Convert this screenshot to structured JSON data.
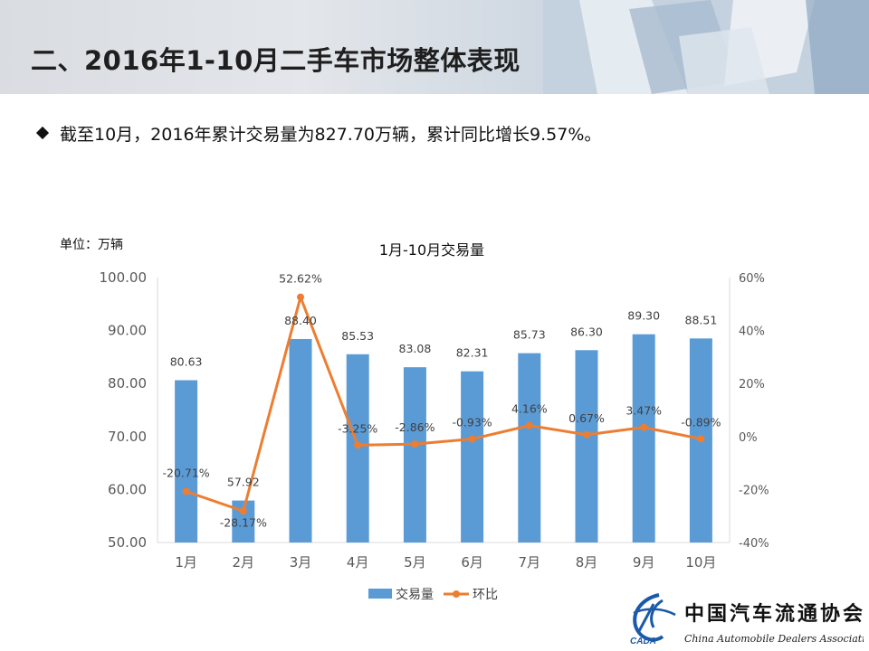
{
  "header": {
    "title": "二、2016年1-10月二手车市场整体表现"
  },
  "bullet": {
    "text": "截至10月，2016年累计交易量为827.70万辆，累计同比增长9.57%。"
  },
  "unit_label": "单位：万辆",
  "logo": {
    "name": "中国汽车流通协会",
    "tagline": "China Automobile Dealers Association",
    "abbr": "CADA"
  },
  "chart_data": {
    "type": "bar+line",
    "title": "1月-10月交易量",
    "categories": [
      "1月",
      "2月",
      "3月",
      "4月",
      "5月",
      "6月",
      "7月",
      "8月",
      "9月",
      "10月"
    ],
    "series": [
      {
        "name": "交易量",
        "type": "bar",
        "axis": "left",
        "color": "#5b9bd5",
        "values": [
          80.63,
          57.92,
          88.4,
          85.53,
          83.08,
          82.31,
          85.73,
          86.3,
          89.3,
          88.51
        ],
        "labels": [
          "80.63",
          "57.92",
          "88.40",
          "85.53",
          "83.08",
          "82.31",
          "85.73",
          "86.30",
          "89.30",
          "88.51"
        ]
      },
      {
        "name": "环比",
        "type": "line",
        "axis": "right",
        "color": "#ed7d31",
        "values": [
          -20.71,
          -28.17,
          52.62,
          -3.25,
          -2.86,
          -0.93,
          4.16,
          0.67,
          3.47,
          -0.89
        ],
        "labels": [
          "-20.71%",
          "-28.17%",
          "52.62%",
          "-3.25%",
          "-2.86%",
          "-0.93%",
          "4.16%",
          "0.67%",
          "3.47%",
          "-0.89%"
        ]
      }
    ],
    "ylim_left": [
      50,
      100
    ],
    "yticks_left": [
      "100.00",
      "90.00",
      "80.00",
      "70.00",
      "60.00",
      "50.00"
    ],
    "ylim_right": [
      -40,
      60
    ],
    "yticks_right": [
      "60%",
      "40%",
      "20%",
      "0%",
      "-20%",
      "-40%"
    ],
    "legend": [
      "交易量",
      "环比"
    ],
    "legend_position": "bottom",
    "grid": false
  }
}
